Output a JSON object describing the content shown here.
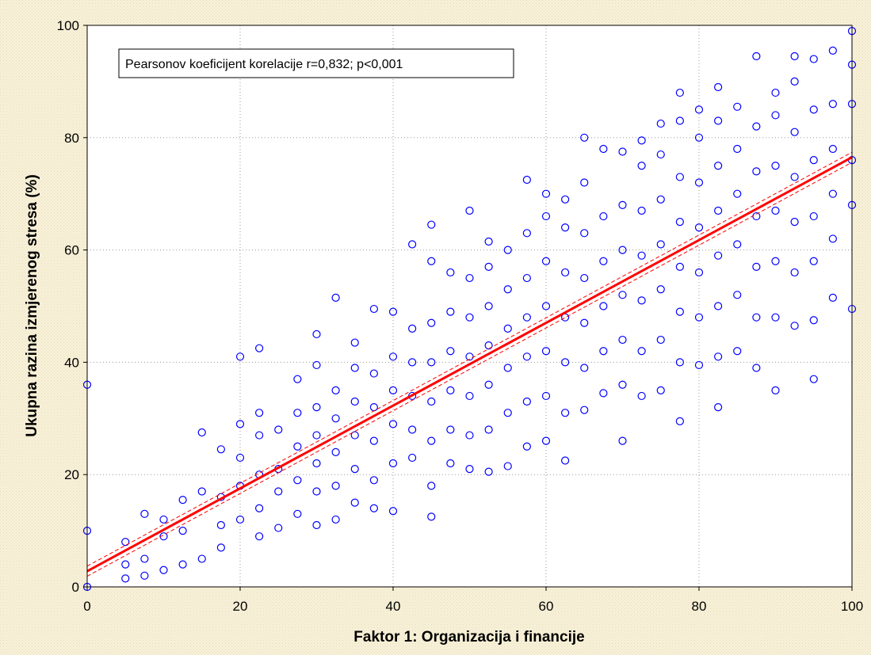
{
  "chart_data": {
    "type": "scatter",
    "xlabel": "Faktor 1: Organizacija i financije",
    "ylabel": "Ukupna razina izmjerenog stresa (%)",
    "annotation": "Pearsonov koeficijent korelacije r=0,832; p<0,001",
    "xlim": [
      0,
      100
    ],
    "ylim": [
      0,
      100
    ],
    "xticks": [
      0,
      20,
      40,
      60,
      80,
      100
    ],
    "yticks": [
      0,
      20,
      40,
      60,
      80,
      100
    ],
    "grid": true,
    "series": [
      {
        "color": "#0000ff",
        "x": [
          0,
          0,
          0,
          5,
          5,
          5,
          7.5,
          7.5,
          7.5,
          10,
          10,
          10,
          12.5,
          12.5,
          12.5,
          15,
          15,
          15,
          17.5,
          17.5,
          17.5,
          17.5,
          20,
          20,
          20,
          20,
          20,
          22.5,
          22.5,
          22.5,
          22.5,
          22.5,
          22.5,
          25,
          25,
          25,
          25,
          27.5,
          27.5,
          27.5,
          27.5,
          27.5,
          30,
          30,
          30,
          30,
          30,
          30,
          30,
          32.5,
          32.5,
          32.5,
          32.5,
          32.5,
          32.5,
          35,
          35,
          35,
          35,
          35,
          35,
          37.5,
          37.5,
          37.5,
          37.5,
          37.5,
          37.5,
          40,
          40,
          40,
          40,
          40,
          40,
          42.5,
          42.5,
          42.5,
          42.5,
          42.5,
          42.5,
          45,
          45,
          45,
          45,
          45,
          45,
          45,
          45,
          47.5,
          47.5,
          47.5,
          47.5,
          47.5,
          47.5,
          50,
          50,
          50,
          50,
          50,
          50,
          50,
          52.5,
          52.5,
          52.5,
          52.5,
          52.5,
          52.5,
          52.5,
          55,
          55,
          55,
          55,
          55,
          55,
          57.5,
          57.5,
          57.5,
          57.5,
          57.5,
          57.5,
          57.5,
          60,
          60,
          60,
          60,
          60,
          60,
          60,
          62.5,
          62.5,
          62.5,
          62.5,
          62.5,
          62.5,
          62.5,
          65,
          65,
          65,
          65,
          65,
          65,
          65,
          67.5,
          67.5,
          67.5,
          67.5,
          67.5,
          67.5,
          70,
          70,
          70,
          70,
          70,
          70,
          70,
          72.5,
          72.5,
          72.5,
          72.5,
          72.5,
          72.5,
          72.5,
          75,
          75,
          75,
          75,
          75,
          75,
          75,
          77.5,
          77.5,
          77.5,
          77.5,
          77.5,
          77.5,
          77.5,
          77.5,
          80,
          80,
          80,
          80,
          80,
          80,
          80,
          82.5,
          82.5,
          82.5,
          82.5,
          82.5,
          82.5,
          82.5,
          82.5,
          85,
          85,
          85,
          85,
          85,
          85,
          87.5,
          87.5,
          87.5,
          87.5,
          87.5,
          87.5,
          87.5,
          90,
          90,
          90,
          90,
          90,
          90,
          90,
          92.5,
          92.5,
          92.5,
          92.5,
          92.5,
          92.5,
          92.5,
          95,
          95,
          95,
          95,
          95,
          95,
          95,
          97.5,
          97.5,
          97.5,
          97.5,
          97.5,
          97.5,
          100,
          100,
          100,
          100,
          100,
          100
        ],
        "y": [
          0,
          10,
          36,
          1.5,
          4,
          8,
          2,
          5,
          13,
          3,
          9,
          12,
          4,
          10,
          15.5,
          5,
          17,
          27.5,
          7,
          11,
          16,
          24.5,
          12,
          18,
          23,
          29,
          41,
          9,
          14,
          20,
          27,
          31,
          42.5,
          10.5,
          17,
          21,
          28,
          13,
          19,
          25,
          31,
          37,
          11,
          17,
          22,
          27,
          32,
          39.5,
          45,
          12,
          18,
          24,
          30,
          35,
          51.5,
          15,
          21,
          27,
          33,
          39,
          43.5,
          14,
          19,
          26,
          32,
          38,
          49.5,
          13.5,
          22,
          29,
          35,
          41,
          49,
          23,
          28,
          34,
          40,
          46,
          61,
          12.5,
          18,
          26,
          33,
          40,
          47,
          58,
          64.5,
          22,
          28,
          35,
          42,
          49,
          56,
          21,
          27,
          34,
          41,
          48,
          55,
          67,
          20.5,
          28,
          36,
          43,
          50,
          57,
          61.5,
          21.5,
          31,
          39,
          46,
          53,
          60,
          25,
          33,
          41,
          48,
          55,
          63,
          72.5,
          26,
          34,
          42,
          50,
          58,
          66,
          70,
          22.5,
          31,
          40,
          48,
          56,
          64,
          69,
          31.5,
          39,
          47,
          55,
          63,
          72,
          80,
          34.5,
          42,
          50,
          58,
          66,
          78,
          26,
          36,
          44,
          52,
          60,
          68,
          77.5,
          34,
          42,
          51,
          59,
          67,
          75,
          79.5,
          35,
          44,
          53,
          61,
          69,
          77,
          82.5,
          29.5,
          40,
          49,
          57,
          65,
          73,
          83,
          88,
          39.5,
          48,
          56,
          64,
          72,
          80,
          85,
          32,
          41,
          50,
          59,
          67,
          75,
          83,
          89,
          42,
          52,
          61,
          70,
          78,
          85.5,
          39,
          48,
          57,
          66,
          74,
          82,
          94.5,
          35,
          48,
          58,
          67,
          75,
          84,
          88,
          46.5,
          56,
          65,
          73,
          81,
          90,
          94.5,
          37,
          47.5,
          58,
          66,
          76,
          85,
          94,
          51.5,
          62,
          70,
          78,
          86,
          95.5,
          49.5,
          68,
          76,
          86,
          93,
          99
        ]
      }
    ],
    "fit_line": {
      "color": "#ff0000",
      "x": [
        0,
        100
      ],
      "y": [
        2.8,
        76.5
      ],
      "lower": [
        1.9,
        75.6
      ],
      "upper": [
        3.7,
        77.4
      ]
    }
  }
}
